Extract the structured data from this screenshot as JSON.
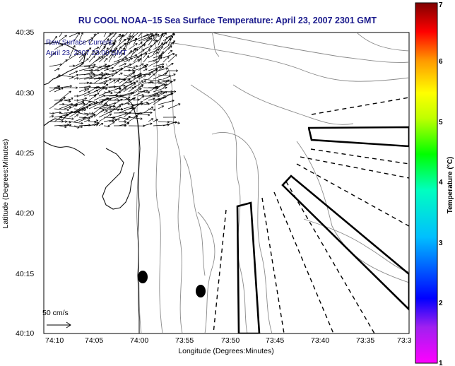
{
  "title": "RU COOL  NOAA–15  Sea Surface Temperature:  April 23, 2007 2301 GMT",
  "overlay": {
    "line1": "Raw Surface Current:",
    "line2": "April 23, 2007 23:00 GMT"
  },
  "axes": {
    "xlabel": "Longitude (Degrees:Minutes)",
    "ylabel": "Latitude (Degrees:Minutes)",
    "x_ticks": [
      "74:10",
      "74:05",
      "74:00",
      "73:55",
      "73:50",
      "73:45",
      "73:40",
      "73:35",
      "73:3"
    ],
    "y_ticks": [
      "40:35",
      "40:30",
      "40:25",
      "40:20",
      "40:15",
      "40:10"
    ]
  },
  "scale": {
    "label": "50 cm/s"
  },
  "colorbar": {
    "label": "Temperature (°C)",
    "ticks": [
      "7",
      "6",
      "5",
      "4",
      "3",
      "2",
      "1"
    ],
    "range": [
      1,
      7
    ],
    "colors": [
      "#ff00ff",
      "#0000ff",
      "#00ffff",
      "#00ff00",
      "#ffff00",
      "#ff7f00",
      "#ff0000",
      "#7f0000"
    ]
  },
  "markers": [
    {
      "name": "buoy-marker-west",
      "lon": "74:01",
      "lat": "40:14.5"
    },
    {
      "name": "buoy-marker-east",
      "lon": "73:57",
      "lat": "40:13"
    }
  ]
}
